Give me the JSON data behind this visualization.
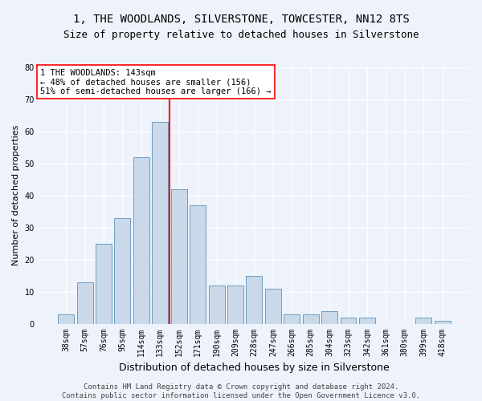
{
  "title": "1, THE WOODLANDS, SILVERSTONE, TOWCESTER, NN12 8TS",
  "subtitle": "Size of property relative to detached houses in Silverstone",
  "xlabel": "Distribution of detached houses by size in Silverstone",
  "ylabel": "Number of detached properties",
  "categories": [
    "38sqm",
    "57sqm",
    "76sqm",
    "95sqm",
    "114sqm",
    "133sqm",
    "152sqm",
    "171sqm",
    "190sqm",
    "209sqm",
    "228sqm",
    "247sqm",
    "266sqm",
    "285sqm",
    "304sqm",
    "323sqm",
    "342sqm",
    "361sqm",
    "380sqm",
    "399sqm",
    "418sqm"
  ],
  "values": [
    3,
    13,
    25,
    33,
    52,
    63,
    42,
    37,
    12,
    12,
    15,
    11,
    3,
    3,
    4,
    2,
    2,
    0,
    0,
    2,
    1
  ],
  "bar_color": "#c9d9ea",
  "bar_edgecolor": "#6a9ec0",
  "vline_x": 5.5,
  "vline_color": "red",
  "annotation_text": "1 THE WOODLANDS: 143sqm\n← 48% of detached houses are smaller (156)\n51% of semi-detached houses are larger (166) →",
  "annotation_box_color": "white",
  "annotation_box_edgecolor": "red",
  "ylim": [
    0,
    80
  ],
  "yticks": [
    0,
    10,
    20,
    30,
    40,
    50,
    60,
    70,
    80
  ],
  "footer_text": "Contains HM Land Registry data © Crown copyright and database right 2024.\nContains public sector information licensed under the Open Government Licence v3.0.",
  "background_color": "#eef2fa",
  "grid_color": "white",
  "title_fontsize": 10,
  "subtitle_fontsize": 9,
  "xlabel_fontsize": 9,
  "ylabel_fontsize": 8,
  "tick_fontsize": 7,
  "annotation_fontsize": 7.5,
  "footer_fontsize": 6.5
}
